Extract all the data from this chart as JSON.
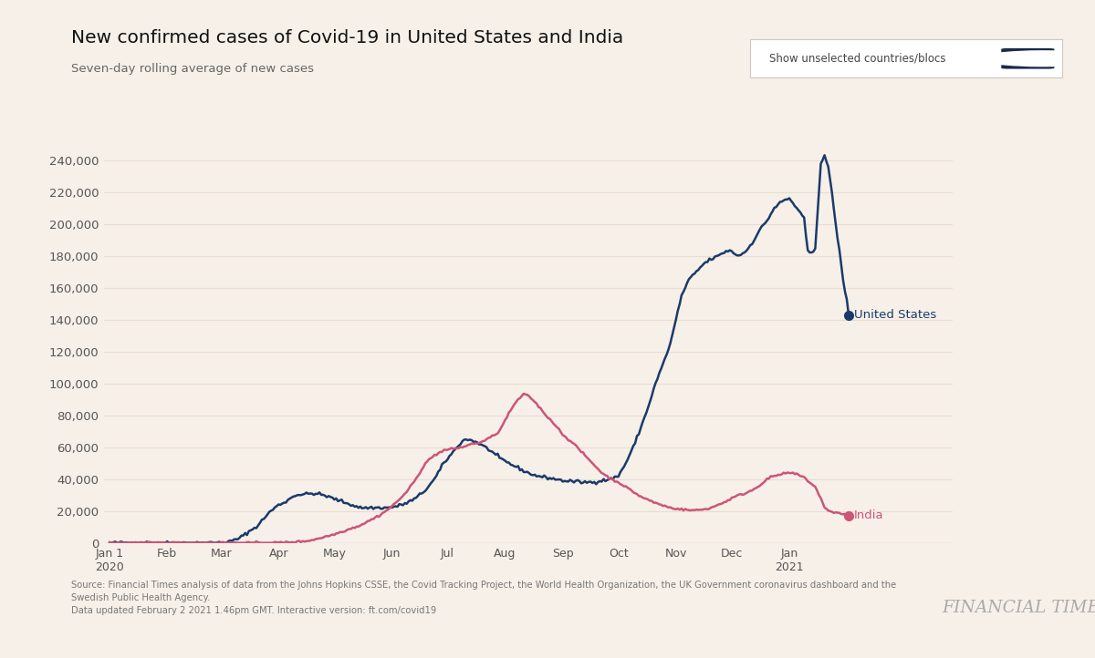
{
  "title": "New confirmed cases of Covid-19 in United States and India",
  "subtitle": "Seven-day rolling average of new cases",
  "background_color": "#f7f0e8",
  "plot_bg_color": "#f7f0e8",
  "us_color": "#1a3a6b",
  "india_color": "#cc5577",
  "ylabel_color": "#555555",
  "grid_color": "#e8ddd0",
  "source_text": "Source: Financial Times analysis of data from the Johns Hopkins CSSE, the Covid Tracking Project, the World Health Organization, the UK Government coronavirus dashboard and the\nSwedish Public Health Agency.\nData updated February 2 2021 1.46pm GMT. Interactive version: ft.com/covid19",
  "ft_logo": "FINANCIAL TIMES",
  "toggle_text": "Show unselected countries/blocs",
  "us_label": "United States",
  "india_label": "India",
  "ylim": [
    0,
    262000
  ],
  "yticks": [
    0,
    20000,
    40000,
    60000,
    80000,
    100000,
    120000,
    140000,
    160000,
    180000,
    200000,
    220000,
    240000
  ],
  "note": "Data points: one per day from Jan 1 2020 (day 0) to Feb 2 2021 (day 398). Month tick positions as day offsets from Jan 1 2020.",
  "month_ticks": [
    0,
    31,
    60,
    91,
    121,
    152,
    182,
    213,
    244,
    274,
    305,
    335,
    366
  ],
  "month_labels": [
    "Jan 1\n2020",
    "Feb",
    "Mar",
    "Apr",
    "May",
    "Jun",
    "Jul",
    "Aug",
    "Sep",
    "Oct",
    "Nov",
    "Dec",
    "Jan\n2021"
  ]
}
